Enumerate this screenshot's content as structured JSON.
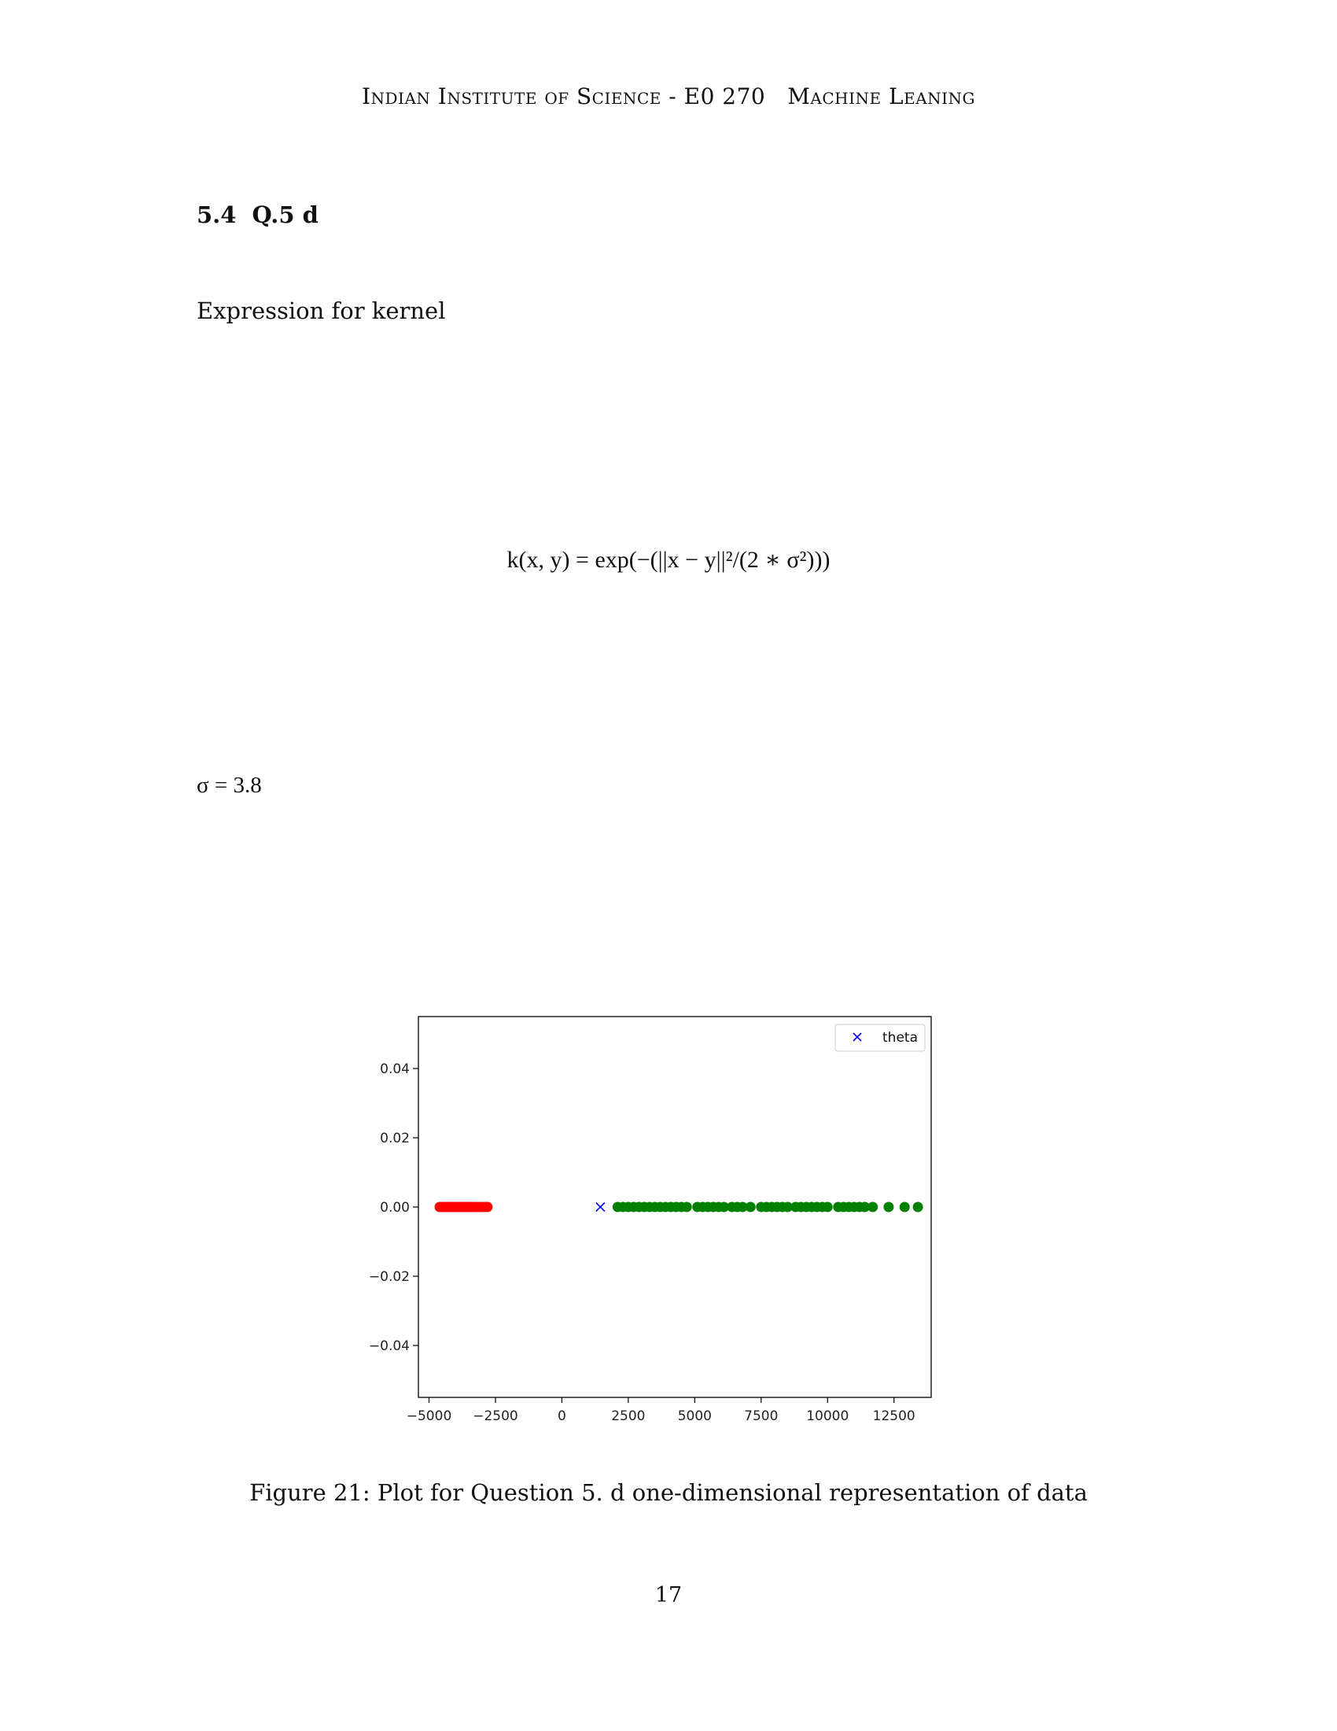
{
  "header": {
    "left": "Indian Institute of Science - E0 270",
    "right": "Machine Leaning"
  },
  "section": {
    "number": "5.4",
    "title": "Q.5 d"
  },
  "paragraph": "Expression for kernel",
  "equation": "k(x, y) = exp(−(||x − y||²/(2 ∗ σ²)))",
  "sigma_line": "σ = 3.8",
  "chart_data": {
    "type": "scatter",
    "xlim": [
      -5400,
      13900
    ],
    "ylim": [
      -0.055,
      0.055
    ],
    "x_ticks": [
      -5000,
      -2500,
      0,
      2500,
      5000,
      7500,
      10000,
      12500
    ],
    "x_tick_labels": [
      "−5000",
      "−2500",
      "0",
      "2500",
      "5000",
      "7500",
      "10000",
      "12500"
    ],
    "y_ticks": [
      0.04,
      0.02,
      0.0,
      -0.02,
      -0.04
    ],
    "y_tick_labels": [
      "0.04",
      "0.02",
      "0.00",
      "−0.02",
      "−0.04"
    ],
    "legend_placement": "top-right",
    "series": [
      {
        "color": "#ff0000",
        "marker": "circle",
        "x": [
          -4600,
          -4500,
          -4420,
          -4350,
          -4280,
          -4200,
          -4130,
          -4060,
          -3990,
          -3920,
          -3850,
          -3780,
          -3700,
          -3620,
          -3550,
          -3470,
          -3400,
          -3300,
          -3200,
          -3100,
          -3000,
          -2900,
          -2800
        ],
        "y": [
          0,
          0,
          0,
          0,
          0,
          0,
          0,
          0,
          0,
          0,
          0,
          0,
          0,
          0,
          0,
          0,
          0,
          0,
          0,
          0,
          0,
          0,
          0
        ]
      },
      {
        "color": "#008000",
        "marker": "circle",
        "x": [
          2100,
          2300,
          2500,
          2700,
          2900,
          3100,
          3300,
          3500,
          3700,
          3900,
          4100,
          4300,
          4500,
          4700,
          5100,
          5300,
          5500,
          5700,
          5900,
          6100,
          6400,
          6600,
          6800,
          7100,
          7500,
          7700,
          7900,
          8100,
          8300,
          8500,
          8800,
          9000,
          9200,
          9400,
          9600,
          9800,
          10000,
          10400,
          10600,
          10800,
          11000,
          11200,
          11400,
          11700,
          12300,
          12900,
          13400
        ],
        "y": [
          0,
          0,
          0,
          0,
          0,
          0,
          0,
          0,
          0,
          0,
          0,
          0,
          0,
          0,
          0,
          0,
          0,
          0,
          0,
          0,
          0,
          0,
          0,
          0,
          0,
          0,
          0,
          0,
          0,
          0,
          0,
          0,
          0,
          0,
          0,
          0,
          0,
          0,
          0,
          0,
          0,
          0,
          0,
          0,
          0,
          0,
          0
        ]
      },
      {
        "name": "theta",
        "color": "#0000ff",
        "marker": "x",
        "x": [
          1450
        ],
        "y": [
          0
        ]
      }
    ]
  },
  "caption": "Figure 21: Plot for Question 5. d one-dimensional representation of data",
  "page_number": "17"
}
